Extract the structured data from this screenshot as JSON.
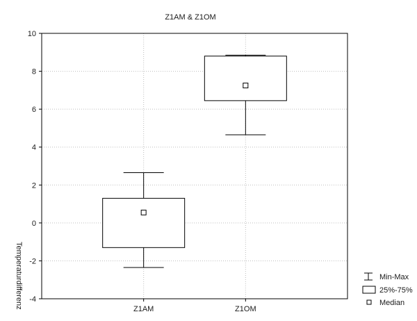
{
  "chart_data": {
    "type": "boxplot",
    "title": "Z1AM &  Z1OM",
    "xlabel": "",
    "ylabel": "Temperaturdifferenz",
    "ylim": [
      -4,
      10
    ],
    "yticks": [
      "10",
      "8",
      "6",
      "4",
      "2",
      "0",
      "-2",
      "-4"
    ],
    "ytick_values": [
      10,
      8,
      6,
      4,
      2,
      0,
      -2,
      -4
    ],
    "categories": [
      "Z1AM",
      "Z1OM"
    ],
    "boxes": [
      {
        "category": "Z1AM",
        "min": -2.35,
        "q1": -1.3,
        "median": 0.55,
        "q3": 1.3,
        "max": 2.65
      },
      {
        "category": "Z1OM",
        "min": 4.65,
        "q1": 6.45,
        "median": 7.25,
        "q3": 8.8,
        "max": 8.85
      }
    ],
    "grid": true,
    "legend": {
      "placement": "bottom-right",
      "entries": [
        "Min-Max",
        "25%-75%",
        "Median"
      ]
    }
  }
}
